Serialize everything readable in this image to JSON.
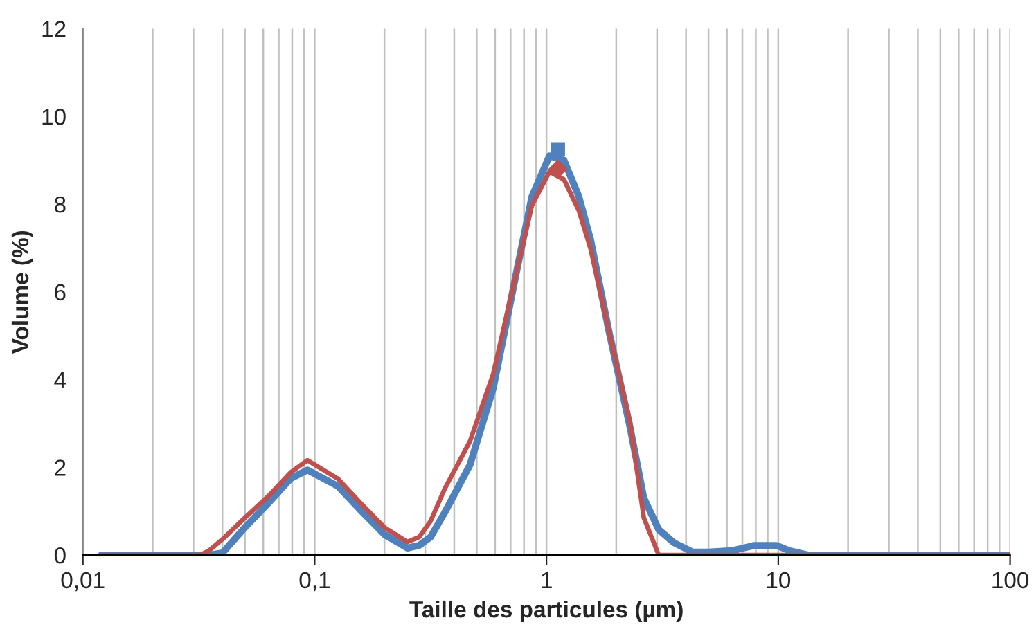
{
  "chart_data": {
    "type": "line",
    "xlabel": "Taille des particules (µm)",
    "ylabel": "Volume (%)",
    "log": "x",
    "x": [
      0.012,
      0.032,
      0.035,
      0.04,
      0.05,
      0.063,
      0.079,
      0.093,
      0.126,
      0.158,
      0.2,
      0.251,
      0.282,
      0.316,
      0.363,
      0.468,
      0.589,
      0.741,
      0.865,
      1.03,
      1.19,
      1.38,
      1.55,
      1.86,
      2.29,
      2.63,
      3.05,
      3.55,
      4.27,
      5.0,
      6.3,
      7.9,
      9.8,
      11.2,
      13.5,
      100
    ],
    "series": [
      {
        "color": "#4f81bd",
        "values": [
          0,
          0,
          0,
          0.05,
          0.63,
          1.18,
          1.75,
          1.94,
          1.57,
          1.02,
          0.47,
          0.16,
          0.22,
          0.41,
          0.96,
          2.06,
          3.8,
          6.43,
          8.17,
          9.1,
          9.0,
          8.17,
          7.19,
          5.1,
          2.93,
          1.3,
          0.58,
          0.28,
          0.07,
          0.07,
          0.1,
          0.22,
          0.22,
          0.1,
          0,
          0
        ]
      },
      {
        "color": "#c0504d",
        "values": [
          0,
          0,
          0.1,
          0.36,
          0.85,
          1.34,
          1.89,
          2.16,
          1.74,
          1.18,
          0.63,
          0.3,
          0.41,
          0.77,
          1.5,
          2.6,
          4.13,
          6.43,
          7.97,
          8.74,
          8.56,
          7.85,
          6.98,
          5.1,
          3.05,
          0.85,
          0,
          0,
          0,
          0,
          0,
          0,
          0,
          0,
          0,
          0
        ]
      },
      {
        "type": "scatter",
        "marker": "square",
        "color": "#4f81bd",
        "x": [
          1.12
        ],
        "values": [
          9.25
        ]
      },
      {
        "type": "scatter",
        "marker": "diamond",
        "color": "#c0504d",
        "x": [
          1.12
        ],
        "values": [
          8.8
        ]
      }
    ],
    "xlim": [
      0.01,
      100
    ],
    "xticks": [
      {
        "value": 0.01,
        "label": "0,01"
      },
      {
        "value": 0.1,
        "label": "0,1"
      },
      {
        "value": 1,
        "label": "1"
      },
      {
        "value": 10,
        "label": "10"
      },
      {
        "value": 100,
        "label": "100"
      }
    ],
    "ylim": [
      0,
      12
    ],
    "yticks": [
      0,
      2,
      4,
      6,
      8,
      10,
      12
    ],
    "grid": "x"
  }
}
